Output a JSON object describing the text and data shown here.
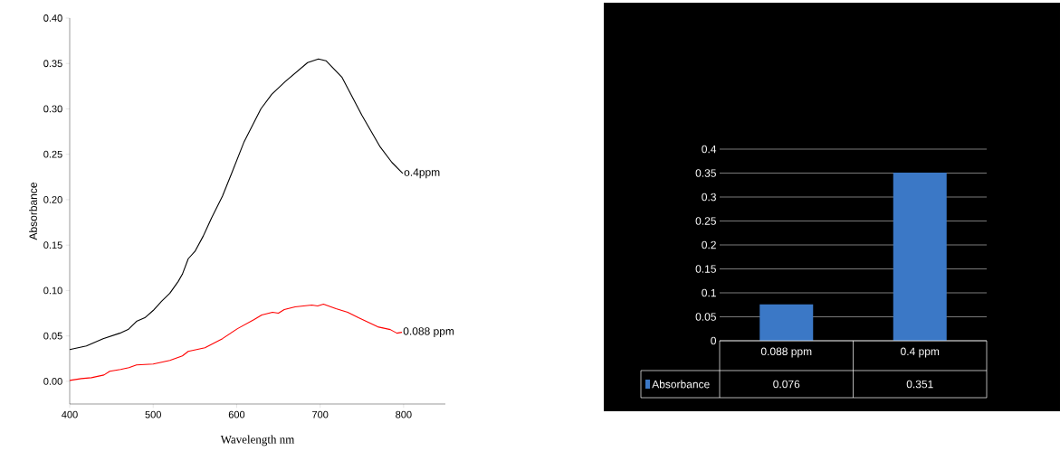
{
  "chart_data": [
    {
      "type": "line",
      "xlabel": "Wavelength nm",
      "ylabel": "Absorbance",
      "xlim": [
        400,
        850
      ],
      "ylim": [
        -0.025,
        0.4
      ],
      "xticks": [
        400,
        500,
        600,
        700,
        800
      ],
      "yticks": [
        {
          "value": 0,
          "label": "0.00"
        },
        0.05,
        {
          "value": 0.1,
          "label": "0.10"
        },
        0.15,
        {
          "value": 0.2,
          "label": "0.20"
        },
        0.25,
        {
          "value": 0.3,
          "label": "0.30"
        },
        0.35,
        {
          "value": 0.4,
          "label": "0.40"
        }
      ],
      "legend": false,
      "series": [
        {
          "name": "o.4ppm",
          "color": "#000000",
          "x": [
            400,
            420,
            440,
            460,
            470,
            480,
            490,
            500,
            510,
            520,
            530,
            535,
            542,
            550,
            560,
            570,
            583,
            594,
            609,
            629,
            642,
            658,
            685,
            698,
            707,
            726,
            750,
            772,
            786,
            799
          ],
          "values": [
            0.035,
            0.039,
            0.047,
            0.053,
            0.057,
            0.066,
            0.07,
            0.078,
            0.088,
            0.097,
            0.11,
            0.118,
            0.135,
            0.143,
            0.16,
            0.18,
            0.204,
            0.229,
            0.264,
            0.3,
            0.316,
            0.33,
            0.351,
            0.355,
            0.353,
            0.335,
            0.293,
            0.258,
            0.241,
            0.229
          ]
        },
        {
          "name": "0.088 ppm",
          "color": "#ff0000",
          "x": [
            400,
            414,
            426,
            441,
            448,
            461,
            471,
            480,
            500,
            520,
            535,
            542,
            562,
            583,
            601,
            621,
            630,
            643,
            650,
            657,
            670,
            690,
            697,
            704,
            719,
            733,
            746,
            769,
            784,
            792,
            798
          ],
          "values": [
            0.001,
            0.003,
            0.004,
            0.007,
            0.011,
            0.013,
            0.015,
            0.018,
            0.019,
            0.023,
            0.028,
            0.033,
            0.037,
            0.047,
            0.058,
            0.068,
            0.073,
            0.076,
            0.075,
            0.079,
            0.082,
            0.084,
            0.083,
            0.085,
            0.08,
            0.076,
            0.07,
            0.06,
            0.057,
            0.053,
            0.054
          ]
        }
      ]
    },
    {
      "type": "bar",
      "categories": [
        "0.088 ppm",
        "0.4 ppm"
      ],
      "ylim": [
        0,
        0.4
      ],
      "yticks": [
        0,
        0.05,
        0.1,
        0.15,
        0.2,
        0.25,
        0.3,
        0.35,
        0.4
      ],
      "grid": "y",
      "legend": "bottom",
      "series": [
        {
          "name": "Absorbance",
          "color": "#3b78c6",
          "values": [
            0.076,
            0.351
          ],
          "value_labels": [
            "0.076",
            "0.351"
          ]
        }
      ]
    }
  ]
}
